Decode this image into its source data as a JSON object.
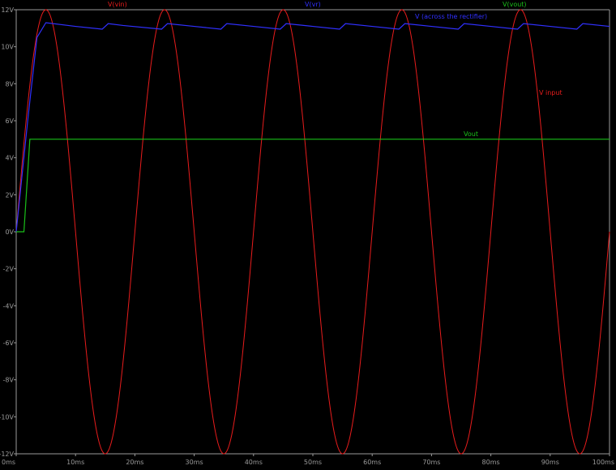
{
  "chart_data": {
    "type": "line",
    "title": "",
    "xlabel": "",
    "ylabel": "",
    "xlim": [
      0,
      100
    ],
    "ylim": [
      -12,
      12
    ],
    "x_ticks": [
      "0ms",
      "10ms",
      "20ms",
      "30ms",
      "40ms",
      "50ms",
      "60ms",
      "70ms",
      "80ms",
      "90ms",
      "100ms"
    ],
    "y_ticks": [
      "12V",
      "10V",
      "8V",
      "6V",
      "4V",
      "2V",
      "0V",
      "-2V",
      "-4V",
      "-6V",
      "-8V",
      "-10V",
      "-12V"
    ],
    "grid": false,
    "background": "#000000",
    "legend": [
      {
        "name": "V(vin)",
        "color": "#e81c1c"
      },
      {
        "name": "V(vr)",
        "color": "#3030ff"
      },
      {
        "name": "V(vout)",
        "color": "#19c019"
      }
    ],
    "annotations": [
      {
        "text": "V (across the rectifier)",
        "color": "#3030ff"
      },
      {
        "text": "V input",
        "color": "#e81c1c"
      },
      {
        "text": "Vout",
        "color": "#19c019"
      }
    ],
    "series": [
      {
        "name": "V(vin)",
        "color": "#e81c1c",
        "x": [
          0,
          2.5,
          5,
          7.5,
          10,
          12.5,
          15,
          17.5,
          20,
          22.5,
          25,
          27.5,
          30,
          32.5,
          35,
          37.5,
          40,
          42.5,
          45,
          47.5,
          50,
          52.5,
          55,
          57.5,
          60,
          62.5,
          65,
          67.5,
          70,
          72.5,
          75,
          77.5,
          80,
          82.5,
          85,
          87.5,
          90,
          92.5,
          95,
          97.5,
          100
        ],
        "y": [
          0,
          8.5,
          12,
          8.5,
          0,
          -8.5,
          -12,
          -8.5,
          0,
          8.5,
          12,
          8.5,
          0,
          -8.5,
          -12,
          -8.5,
          0,
          8.5,
          12,
          8.5,
          0,
          -8.5,
          -12,
          -8.5,
          0,
          8.5,
          12,
          8.5,
          0,
          -8.5,
          -12,
          -8.5,
          0,
          8.5,
          12,
          8.5,
          0,
          -8.5,
          -12,
          -8.5,
          0
        ]
      },
      {
        "name": "V(vr)",
        "color": "#3030ff",
        "x": [
          0,
          2,
          3.5,
          5,
          10,
          14.5,
          15.5,
          18,
          24.5,
          25.5,
          30,
          34.5,
          35.5,
          40,
          44.5,
          45.5,
          50,
          54.5,
          55.5,
          60,
          64.5,
          65.5,
          70,
          74.5,
          75.5,
          80,
          84.5,
          85.5,
          90,
          94.5,
          95.5,
          100
        ],
        "y": [
          0,
          6.2,
          10.5,
          11.3,
          11.1,
          10.95,
          11.25,
          11.15,
          10.95,
          11.25,
          11.1,
          10.95,
          11.25,
          11.1,
          10.95,
          11.25,
          11.1,
          10.95,
          11.25,
          11.1,
          10.95,
          11.25,
          11.1,
          10.95,
          11.25,
          11.1,
          10.95,
          11.25,
          11.1,
          10.95,
          11.25,
          11.1
        ]
      },
      {
        "name": "V(vout)",
        "color": "#19c019",
        "x": [
          0,
          1.3,
          2.3,
          100
        ],
        "y": [
          0,
          0,
          5,
          5
        ]
      }
    ]
  }
}
